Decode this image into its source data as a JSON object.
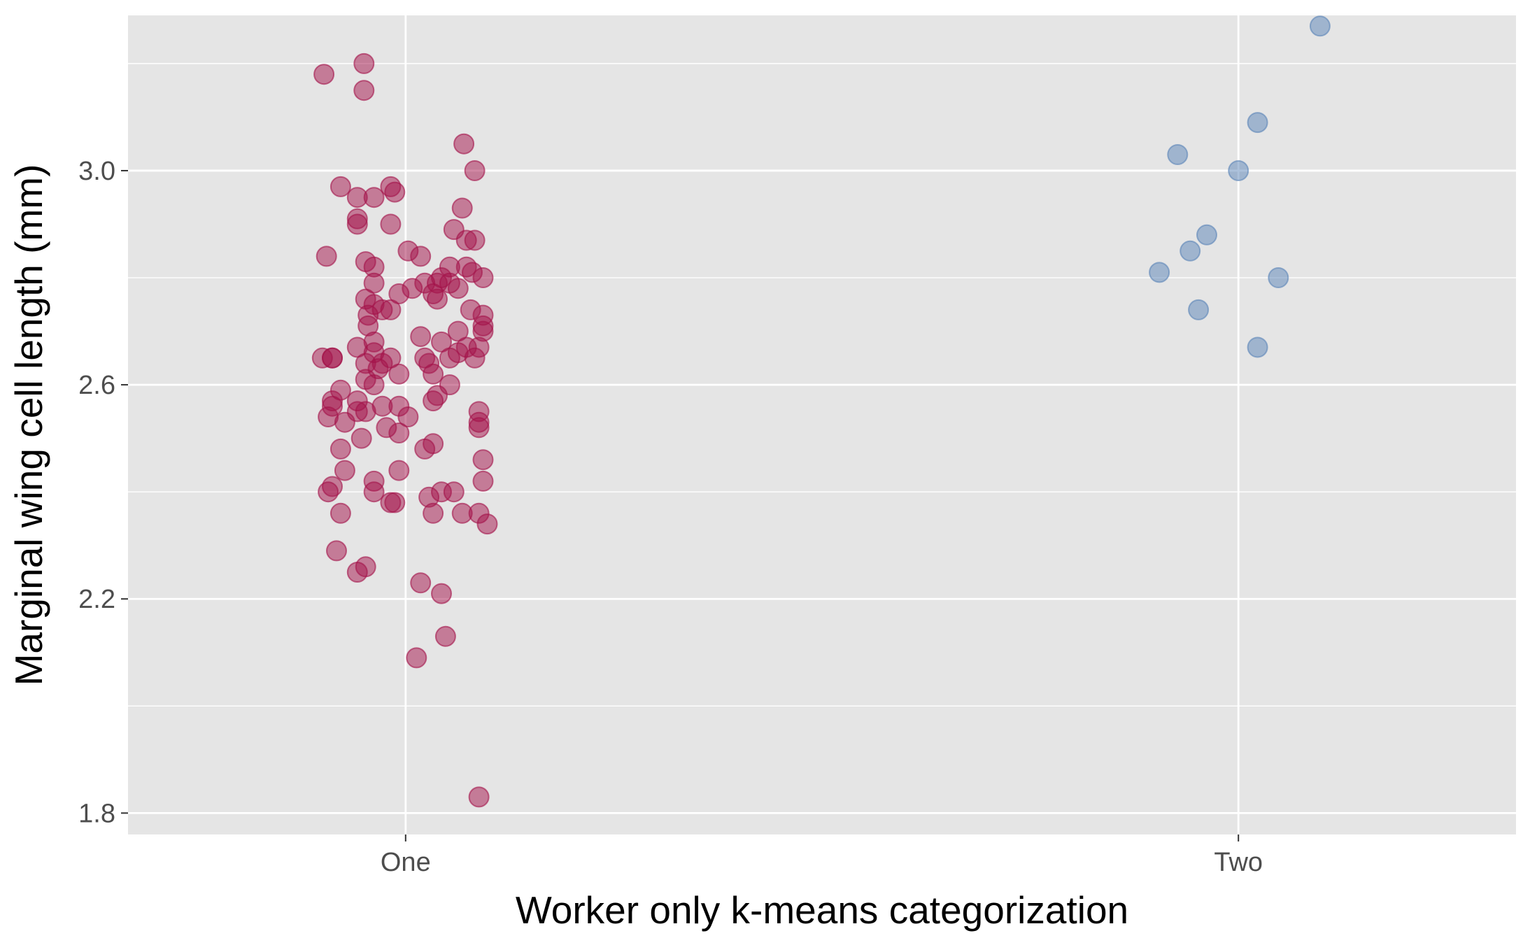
{
  "chart_data": {
    "type": "scatter",
    "title": "",
    "xlabel": "Worker only k-means categorization",
    "ylabel": "Marginal wing cell length (mm)",
    "categories": [
      "One",
      "Two"
    ],
    "ylim": [
      1.76,
      3.29
    ],
    "y_ticks": [
      1.8,
      2.2,
      2.6,
      3.0
    ],
    "y_tick_labels": [
      "1.8",
      "2.2",
      "2.6",
      "3.0"
    ],
    "grid": true,
    "legend": "none",
    "colors": {
      "panel": "#e5e5e5",
      "grid": "#ffffff",
      "One": "#a4124a",
      "Two": "#5a84b8"
    },
    "series": [
      {
        "name": "One",
        "points": [
          {
            "x": -0.098,
            "y": 3.18
          },
          {
            "x": -0.05,
            "y": 3.2
          },
          {
            "x": -0.05,
            "y": 3.15
          },
          {
            "x": 0.07,
            "y": 3.05
          },
          {
            "x": 0.083,
            "y": 3.0
          },
          {
            "x": -0.078,
            "y": 2.97
          },
          {
            "x": -0.058,
            "y": 2.95
          },
          {
            "x": -0.038,
            "y": 2.95
          },
          {
            "x": -0.018,
            "y": 2.97
          },
          {
            "x": -0.013,
            "y": 2.96
          },
          {
            "x": 0.068,
            "y": 2.93
          },
          {
            "x": -0.058,
            "y": 2.91
          },
          {
            "x": -0.058,
            "y": 2.9
          },
          {
            "x": -0.018,
            "y": 2.9
          },
          {
            "x": 0.058,
            "y": 2.89
          },
          {
            "x": 0.073,
            "y": 2.87
          },
          {
            "x": 0.083,
            "y": 2.87
          },
          {
            "x": 0.003,
            "y": 2.85
          },
          {
            "x": 0.018,
            "y": 2.84
          },
          {
            "x": -0.095,
            "y": 2.84
          },
          {
            "x": -0.048,
            "y": 2.83
          },
          {
            "x": -0.038,
            "y": 2.82
          },
          {
            "x": 0.053,
            "y": 2.82
          },
          {
            "x": 0.073,
            "y": 2.82
          },
          {
            "x": 0.08,
            "y": 2.81
          },
          {
            "x": 0.043,
            "y": 2.8
          },
          {
            "x": 0.093,
            "y": 2.8
          },
          {
            "x": 0.023,
            "y": 2.79
          },
          {
            "x": -0.038,
            "y": 2.79
          },
          {
            "x": 0.038,
            "y": 2.79
          },
          {
            "x": 0.053,
            "y": 2.79
          },
          {
            "x": 0.063,
            "y": 2.78
          },
          {
            "x": 0.008,
            "y": 2.78
          },
          {
            "x": -0.008,
            "y": 2.77
          },
          {
            "x": 0.033,
            "y": 2.77
          },
          {
            "x": -0.048,
            "y": 2.76
          },
          {
            "x": 0.038,
            "y": 2.76
          },
          {
            "x": -0.038,
            "y": 2.75
          },
          {
            "x": -0.028,
            "y": 2.74
          },
          {
            "x": -0.018,
            "y": 2.74
          },
          {
            "x": -0.045,
            "y": 2.73
          },
          {
            "x": 0.078,
            "y": 2.74
          },
          {
            "x": 0.093,
            "y": 2.73
          },
          {
            "x": -0.045,
            "y": 2.71
          },
          {
            "x": 0.093,
            "y": 2.71
          },
          {
            "x": 0.093,
            "y": 2.7
          },
          {
            "x": 0.063,
            "y": 2.7
          },
          {
            "x": 0.018,
            "y": 2.69
          },
          {
            "x": 0.043,
            "y": 2.68
          },
          {
            "x": -0.038,
            "y": 2.68
          },
          {
            "x": 0.088,
            "y": 2.67
          },
          {
            "x": -0.058,
            "y": 2.67
          },
          {
            "x": 0.073,
            "y": 2.67
          },
          {
            "x": 0.063,
            "y": 2.66
          },
          {
            "x": -0.038,
            "y": 2.66
          },
          {
            "x": -0.018,
            "y": 2.65
          },
          {
            "x": 0.023,
            "y": 2.65
          },
          {
            "x": 0.053,
            "y": 2.65
          },
          {
            "x": 0.083,
            "y": 2.65
          },
          {
            "x": -0.1,
            "y": 2.65
          },
          {
            "x": -0.088,
            "y": 2.65
          },
          {
            "x": -0.088,
            "y": 2.65
          },
          {
            "x": -0.048,
            "y": 2.64
          },
          {
            "x": -0.028,
            "y": 2.64
          },
          {
            "x": 0.028,
            "y": 2.64
          },
          {
            "x": -0.033,
            "y": 2.63
          },
          {
            "x": -0.008,
            "y": 2.62
          },
          {
            "x": 0.033,
            "y": 2.62
          },
          {
            "x": -0.048,
            "y": 2.61
          },
          {
            "x": -0.038,
            "y": 2.6
          },
          {
            "x": 0.053,
            "y": 2.6
          },
          {
            "x": -0.078,
            "y": 2.59
          },
          {
            "x": 0.038,
            "y": 2.58
          },
          {
            "x": 0.033,
            "y": 2.57
          },
          {
            "x": -0.058,
            "y": 2.57
          },
          {
            "x": -0.088,
            "y": 2.57
          },
          {
            "x": -0.028,
            "y": 2.56
          },
          {
            "x": -0.008,
            "y": 2.56
          },
          {
            "x": -0.088,
            "y": 2.56
          },
          {
            "x": -0.048,
            "y": 2.55
          },
          {
            "x": 0.088,
            "y": 2.55
          },
          {
            "x": -0.058,
            "y": 2.55
          },
          {
            "x": 0.003,
            "y": 2.54
          },
          {
            "x": -0.093,
            "y": 2.54
          },
          {
            "x": -0.073,
            "y": 2.53
          },
          {
            "x": 0.088,
            "y": 2.53
          },
          {
            "x": -0.023,
            "y": 2.52
          },
          {
            "x": 0.088,
            "y": 2.52
          },
          {
            "x": -0.008,
            "y": 2.51
          },
          {
            "x": -0.053,
            "y": 2.5
          },
          {
            "x": 0.033,
            "y": 2.49
          },
          {
            "x": -0.078,
            "y": 2.48
          },
          {
            "x": 0.023,
            "y": 2.48
          },
          {
            "x": 0.093,
            "y": 2.46
          },
          {
            "x": -0.073,
            "y": 2.44
          },
          {
            "x": -0.008,
            "y": 2.44
          },
          {
            "x": -0.038,
            "y": 2.42
          },
          {
            "x": 0.093,
            "y": 2.42
          },
          {
            "x": -0.088,
            "y": 2.41
          },
          {
            "x": -0.038,
            "y": 2.4
          },
          {
            "x": 0.043,
            "y": 2.4
          },
          {
            "x": 0.058,
            "y": 2.4
          },
          {
            "x": -0.093,
            "y": 2.4
          },
          {
            "x": 0.028,
            "y": 2.39
          },
          {
            "x": -0.018,
            "y": 2.38
          },
          {
            "x": -0.013,
            "y": 2.38
          },
          {
            "x": -0.078,
            "y": 2.36
          },
          {
            "x": 0.033,
            "y": 2.36
          },
          {
            "x": 0.068,
            "y": 2.36
          },
          {
            "x": 0.088,
            "y": 2.36
          },
          {
            "x": 0.098,
            "y": 2.34
          },
          {
            "x": -0.083,
            "y": 2.29
          },
          {
            "x": -0.048,
            "y": 2.26
          },
          {
            "x": -0.058,
            "y": 2.25
          },
          {
            "x": 0.018,
            "y": 2.23
          },
          {
            "x": 0.043,
            "y": 2.21
          },
          {
            "x": 0.048,
            "y": 2.13
          },
          {
            "x": 0.013,
            "y": 2.09
          },
          {
            "x": 0.088,
            "y": 1.83
          }
        ]
      },
      {
        "name": "Two",
        "points": [
          {
            "x": 0.098,
            "y": 3.27
          },
          {
            "x": 0.023,
            "y": 3.09
          },
          {
            "x": -0.073,
            "y": 3.03
          },
          {
            "x": 0.0,
            "y": 3.0
          },
          {
            "x": -0.038,
            "y": 2.88
          },
          {
            "x": -0.058,
            "y": 2.85
          },
          {
            "x": -0.095,
            "y": 2.81
          },
          {
            "x": 0.048,
            "y": 2.8
          },
          {
            "x": -0.048,
            "y": 2.74
          },
          {
            "x": 0.023,
            "y": 2.67
          }
        ]
      }
    ]
  }
}
